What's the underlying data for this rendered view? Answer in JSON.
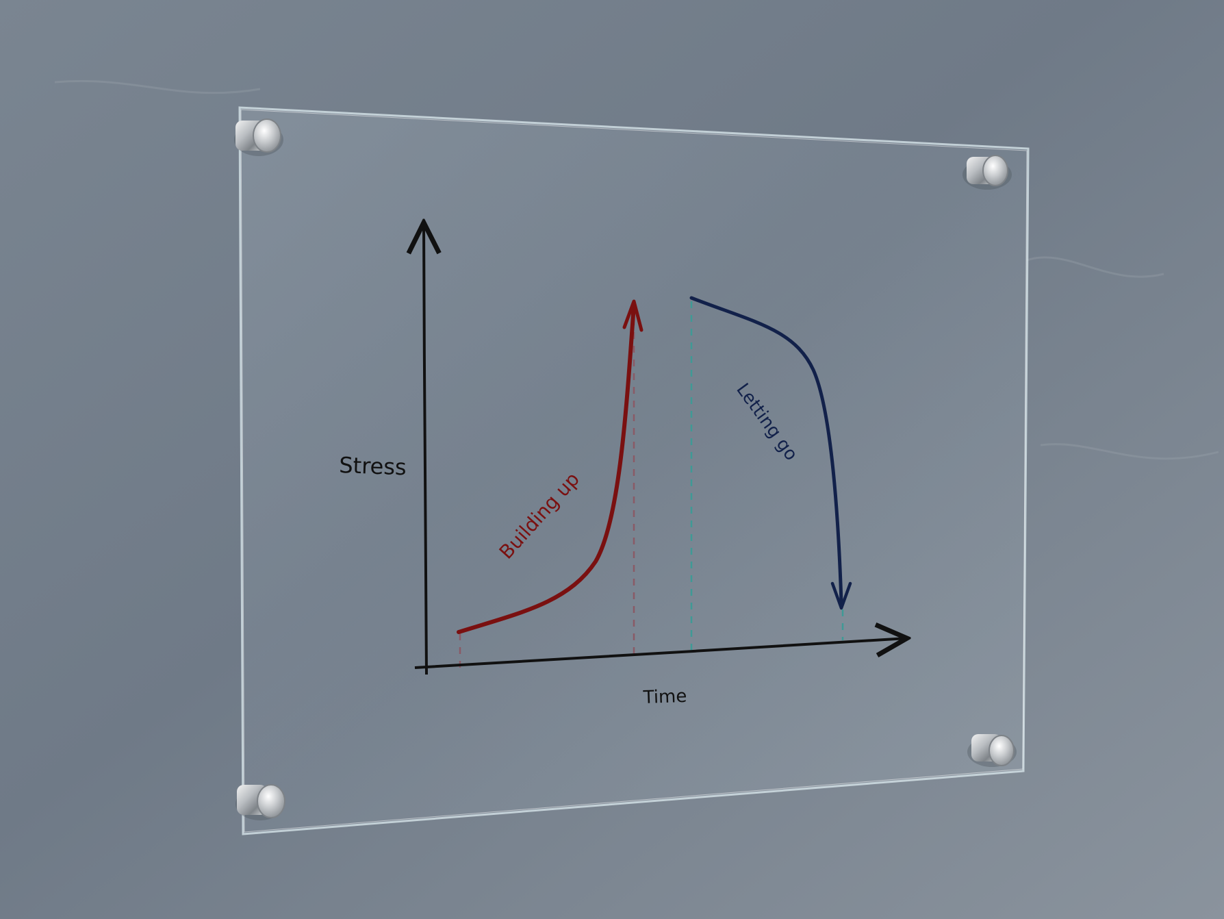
{
  "diagram": {
    "y_axis_label": "Stress",
    "x_axis_label": "Time",
    "curves": [
      {
        "label": "Building up",
        "color": "#7a1010",
        "direction": "rising"
      },
      {
        "label": "Letting go",
        "color": "#12214a",
        "direction": "falling"
      }
    ],
    "colors": {
      "wall": "#6e7985",
      "axis": "#111111",
      "building_up": "#7a1010",
      "letting_go": "#12214a",
      "guide_red": "#8a5a66",
      "guide_teal": "#3f9a96"
    }
  },
  "scene": {
    "objects": [
      "wall",
      "glass-panel",
      "standoff-mount-icon"
    ]
  }
}
